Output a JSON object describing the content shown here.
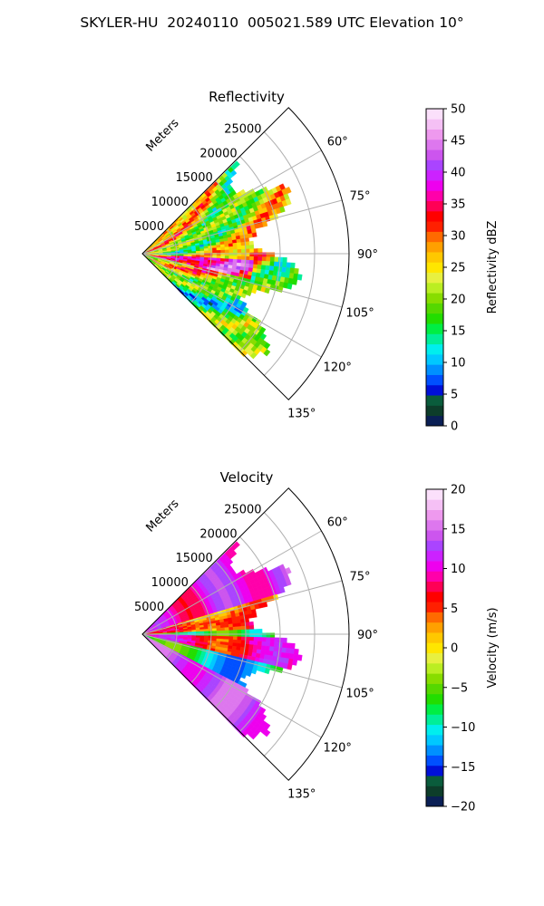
{
  "figure_title": "SKYLER-HU  20240110  005021.589 UTC Elevation 10°",
  "chart_data": [
    {
      "type": "heatmap",
      "title": "Reflectivity",
      "subtype": "polar-sector-radar-scan",
      "radial_axis_label": "Meters",
      "r_ticks": [
        5000,
        10000,
        15000,
        20000,
        25000
      ],
      "r_tick_labels": [
        "5000",
        "10000",
        "15000",
        "20000",
        "25000"
      ],
      "rlim": [
        0,
        30000
      ],
      "theta_range_deg": [
        45,
        135
      ],
      "theta_ticks": [
        60,
        75,
        90,
        105,
        120,
        135
      ],
      "theta_tick_labels": [
        "60°",
        "75°",
        "90°",
        "105°",
        "120°",
        "135°"
      ],
      "grid": true,
      "data_extent_range_m": 24000,
      "colorbar": {
        "label": "Reflectivity dBZ",
        "min": 0,
        "max": 50,
        "ticks": [
          0,
          5,
          10,
          15,
          20,
          25,
          30,
          35,
          40,
          45,
          50
        ],
        "tick_labels": [
          "0",
          "5",
          "10",
          "15",
          "20",
          "25",
          "30",
          "35",
          "40",
          "45",
          "50"
        ],
        "colors": [
          "#0a1f55",
          "#0d3d2a",
          "#0a5c3c",
          "#0010d8",
          "#0050ff",
          "#0090ff",
          "#00c8ff",
          "#00eeee",
          "#00ee99",
          "#00ee44",
          "#22dd00",
          "#55d800",
          "#88dd00",
          "#bbee22",
          "#e8f040",
          "#ffe600",
          "#ffc800",
          "#ffa000",
          "#ff6a00",
          "#ff2000",
          "#ff0000",
          "#ff0055",
          "#ff00aa",
          "#ee00ee",
          "#cc22ff",
          "#aa44ff",
          "#cc55ee",
          "#dd77ee",
          "#ee99ee",
          "#f5c0f5",
          "#fbe0fb"
        ]
      }
    },
    {
      "type": "heatmap",
      "title": "Velocity",
      "subtype": "polar-sector-radar-scan",
      "radial_axis_label": "Meters",
      "r_ticks": [
        5000,
        10000,
        15000,
        20000,
        25000
      ],
      "r_tick_labels": [
        "5000",
        "10000",
        "15000",
        "20000",
        "25000"
      ],
      "rlim": [
        0,
        30000
      ],
      "theta_range_deg": [
        45,
        135
      ],
      "theta_ticks": [
        60,
        75,
        90,
        105,
        120,
        135
      ],
      "theta_tick_labels": [
        "60°",
        "75°",
        "90°",
        "105°",
        "120°",
        "135°"
      ],
      "grid": true,
      "data_extent_range_m": 24000,
      "colorbar": {
        "label": "Velocity (m/s)",
        "min": -20,
        "max": 20,
        "ticks": [
          -20,
          -15,
          -10,
          -5,
          0,
          5,
          10,
          15,
          20
        ],
        "tick_labels": [
          "−20",
          "−15",
          "−10",
          "−5",
          "0",
          "5",
          "10",
          "15",
          "20"
        ],
        "colors": [
          "#0a1f55",
          "#0d3d2a",
          "#0a5c3c",
          "#0010d8",
          "#0050ff",
          "#0090ff",
          "#00c8ff",
          "#00eeee",
          "#00ee99",
          "#00ee44",
          "#22dd00",
          "#55d800",
          "#88dd00",
          "#bbee22",
          "#e8f040",
          "#ffe600",
          "#ffc800",
          "#ffa000",
          "#ff6a00",
          "#ff2000",
          "#ff0000",
          "#ff0055",
          "#ff00aa",
          "#ee00ee",
          "#cc22ff",
          "#aa44ff",
          "#cc55ee",
          "#dd77ee",
          "#ee99ee",
          "#f5c0f5",
          "#fbe0fb"
        ]
      }
    }
  ]
}
